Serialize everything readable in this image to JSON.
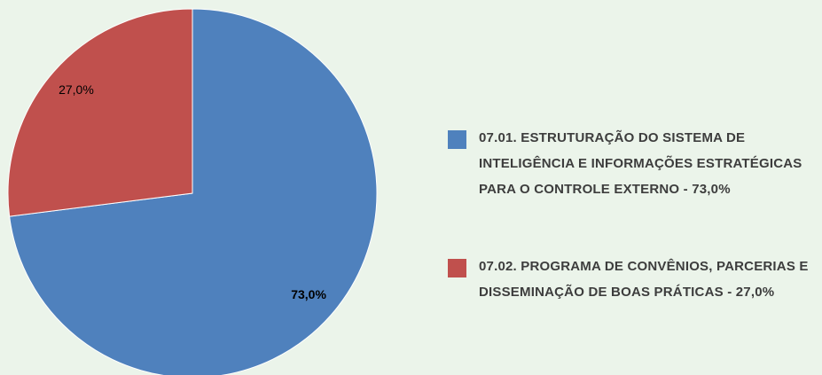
{
  "chart_data": {
    "type": "pie",
    "categories": [
      "07.01. ESTRUTURAÇÃO DO SISTEMA DE INTELIGÊNCIA E INFORMAÇÕES ESTRATÉGICAS PARA O CONTROLE EXTERNO - 73,0%",
      "07.02. PROGRAMA DE CONVÊNIOS, PARCERIAS E DISSEMINAÇÃO DE BOAS PRÁTICAS - 27,0%"
    ],
    "values": [
      73,
      27
    ],
    "value_labels": [
      "73,0%",
      "27,0%"
    ],
    "colors": [
      "#4f81bd",
      "#c0504d"
    ],
    "legend": "right"
  }
}
